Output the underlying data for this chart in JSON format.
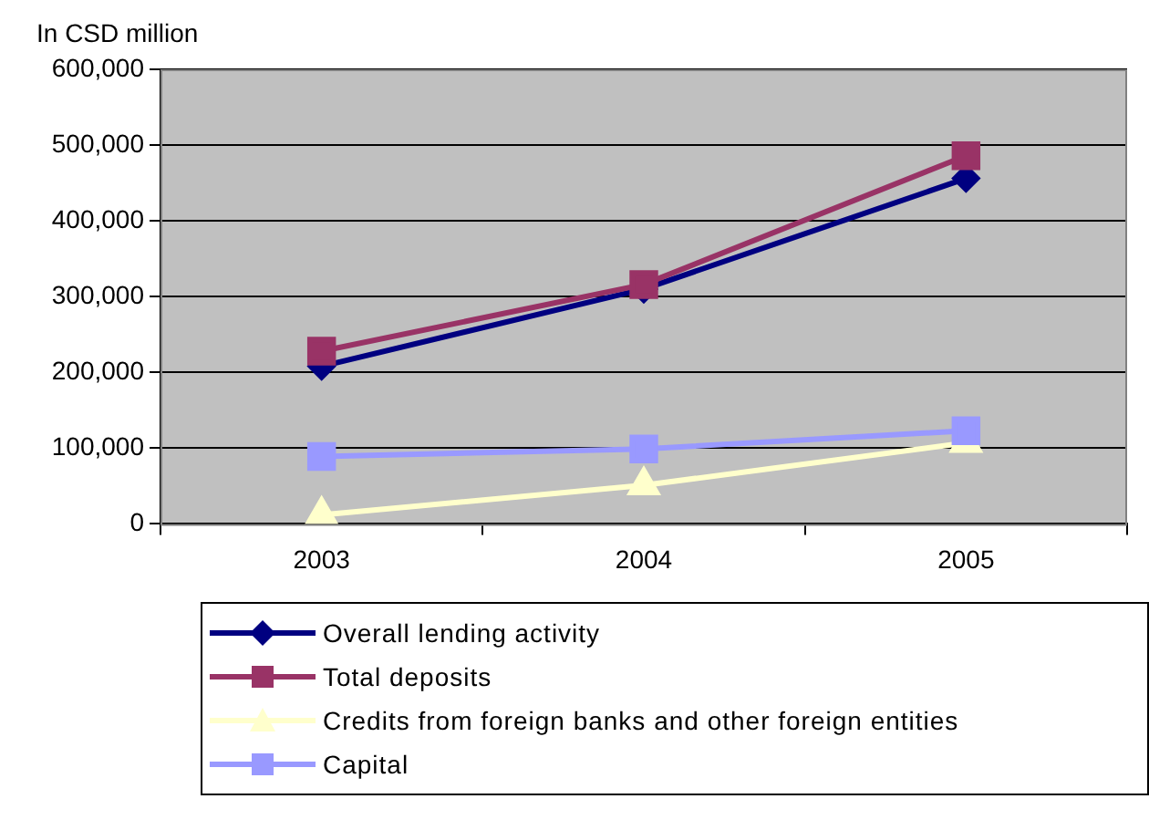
{
  "chart_data": {
    "type": "line",
    "ylabel": "In CSD million",
    "categories": [
      "2003",
      "2004",
      "2005"
    ],
    "series": [
      {
        "name": "Overall lending activity",
        "color": "#000080",
        "marker": "diamond",
        "values": [
          208000,
          310000,
          456000
        ]
      },
      {
        "name": "Total deposits",
        "color": "#993366",
        "marker": "square",
        "values": [
          228000,
          316000,
          486000
        ]
      },
      {
        "name": "Credits from foreign banks and other foreign entities",
        "color": "#ffffcc",
        "marker": "triangle",
        "values": [
          12000,
          51000,
          107000
        ]
      },
      {
        "name": "Capital",
        "color": "#9999ff",
        "marker": "square",
        "values": [
          89000,
          99000,
          123000
        ]
      }
    ],
    "ylim": [
      0,
      600000
    ],
    "yticks": [
      0,
      {
        "value": 100000,
        "label": "100,000"
      },
      {
        "value": 200000,
        "label": "200,000"
      },
      {
        "value": 300000,
        "label": "300,000"
      },
      {
        "value": 400000,
        "label": "400,000"
      },
      {
        "value": 500000,
        "label": "500,000"
      },
      {
        "value": 600000,
        "label": "600,000"
      }
    ],
    "grid": "y",
    "legend": "bottom"
  }
}
